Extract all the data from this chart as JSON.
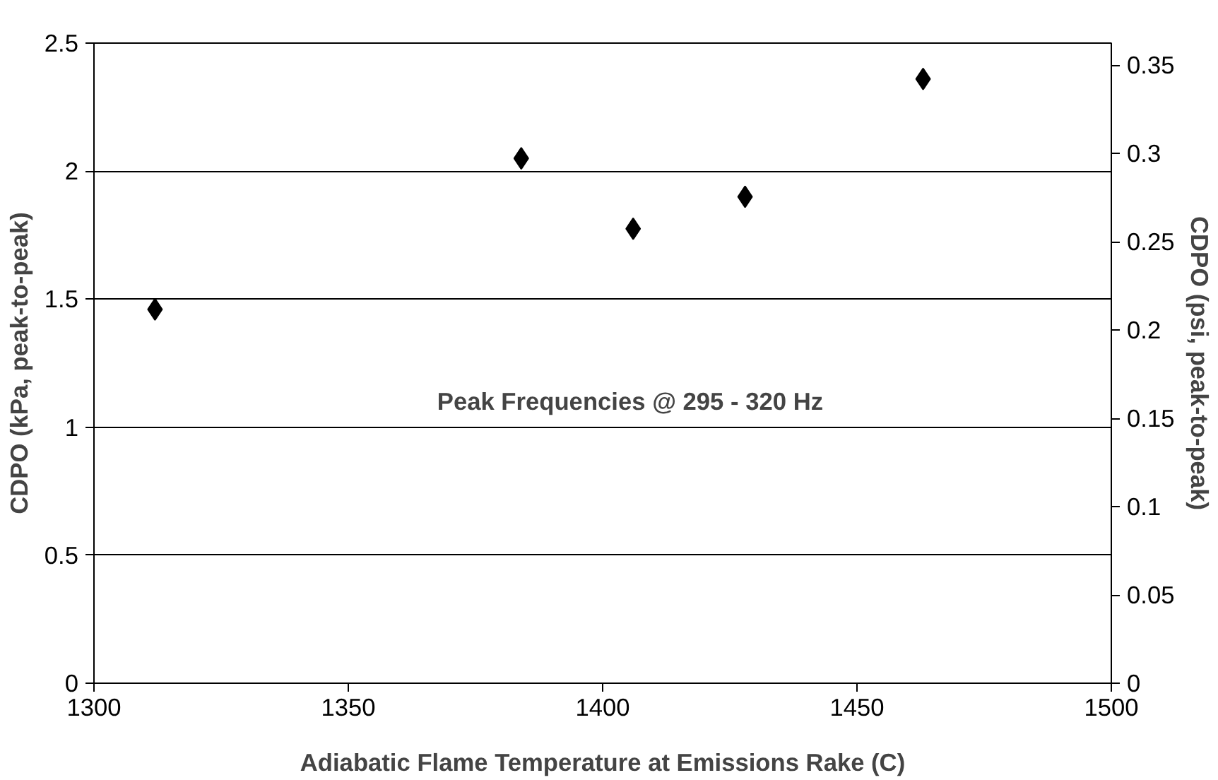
{
  "chart_data": {
    "type": "scatter",
    "xlabel": "Adiabatic Flame Temperature at Emissions Rake (C)",
    "ylabel": "CDPO (kPa, peak-to-peak)",
    "y2label": "CDPO (psi, peak-to-peak)",
    "x": [
      1312,
      1384,
      1406,
      1428,
      1463
    ],
    "series": [
      {
        "color": "#000000",
        "values": [
          1.46,
          2.05,
          1.775,
          1.9,
          2.36
        ]
      }
    ],
    "xlim": [
      1300,
      1500
    ],
    "xticks": [
      1300,
      1350,
      1400,
      1450,
      1500
    ],
    "ylim": [
      0,
      2.5
    ],
    "yticks": [
      0,
      0.5,
      1,
      1.5,
      2,
      2.5
    ],
    "y2lim": [
      0,
      0.3626
    ],
    "y2ticks": [
      0,
      0.05,
      0.1,
      0.15,
      0.2,
      0.25,
      0.3,
      0.35
    ],
    "grid": "y",
    "marker": "diamond",
    "annotations": [
      "Peak Frequencies @ 295 - 320 Hz"
    ]
  }
}
